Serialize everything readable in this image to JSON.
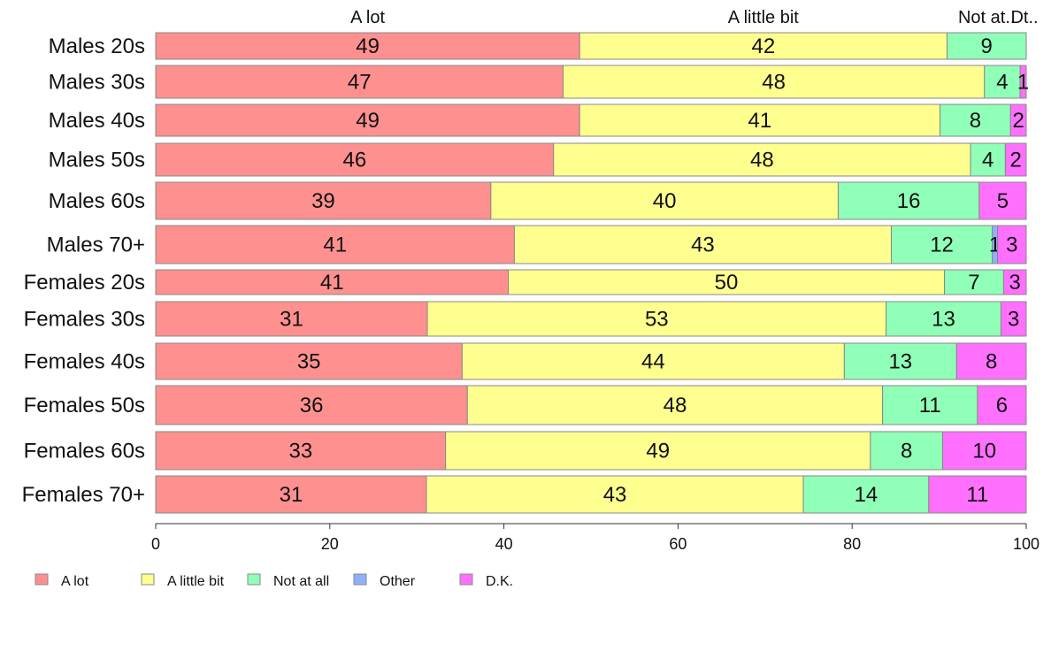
{
  "chart_data": {
    "type": "bar",
    "orientation": "horizontal",
    "stacked": true,
    "xlim": [
      0,
      100
    ],
    "xticks": [
      0,
      20,
      40,
      60,
      80,
      100
    ],
    "legend_position": "bottom",
    "categories": [
      "Males 20s",
      "Males 30s",
      "Males 40s",
      "Males 50s",
      "Males 60s",
      "Males 70+",
      "Females 20s",
      "Females 30s",
      "Females 40s",
      "Females 50s",
      "Females 60s",
      "Females 70+"
    ],
    "series": [
      {
        "name": "A lot",
        "color": "#ff9090",
        "values": [
          48.7,
          46.8,
          48.7,
          45.7,
          38.5,
          41.2,
          40.5,
          31.2,
          35.2,
          35.8,
          33.3,
          31.1
        ]
      },
      {
        "name": "A little bit",
        "color": "#ffff90",
        "values": [
          42.2,
          48.4,
          41.4,
          47.9,
          39.9,
          43.3,
          50.1,
          52.7,
          43.9,
          47.7,
          48.8,
          43.3
        ]
      },
      {
        "name": "Not at all",
        "color": "#90ffb8",
        "values": [
          9.1,
          4.1,
          8.1,
          4.0,
          16.2,
          11.6,
          6.8,
          13.2,
          12.9,
          10.9,
          8.3,
          14.4
        ]
      },
      {
        "name": "Other",
        "color": "#90b0ff",
        "values": [
          0,
          0,
          0,
          0,
          0,
          0.6,
          0,
          0,
          0,
          0,
          0,
          0
        ]
      },
      {
        "name": "D.K.",
        "color": "#ff70ff",
        "values": [
          0,
          0.7,
          1.8,
          2.4,
          5.4,
          3.3,
          2.6,
          2.9,
          8.0,
          5.6,
          9.6,
          11.2
        ]
      }
    ],
    "data_labels": [
      [
        "49",
        "42",
        "9",
        "",
        ""
      ],
      [
        "47",
        "48",
        "4",
        "",
        "1"
      ],
      [
        "49",
        "41",
        "8",
        "",
        "2"
      ],
      [
        "46",
        "48",
        "4",
        "",
        "2"
      ],
      [
        "39",
        "40",
        "16",
        "",
        "5"
      ],
      [
        "41",
        "43",
        "12",
        "1",
        "3"
      ],
      [
        "41",
        "50",
        "7",
        "",
        "3"
      ],
      [
        "31",
        "53",
        "13",
        "",
        "3"
      ],
      [
        "35",
        "44",
        "13",
        "",
        "8"
      ],
      [
        "36",
        "48",
        "11",
        "",
        "6"
      ],
      [
        "33",
        "49",
        "8",
        "",
        "10"
      ],
      [
        "31",
        "43",
        "14",
        "",
        "11"
      ]
    ],
    "top_labels": [
      "A lot",
      "A little bit",
      "Not at..",
      "Dt.."
    ]
  }
}
